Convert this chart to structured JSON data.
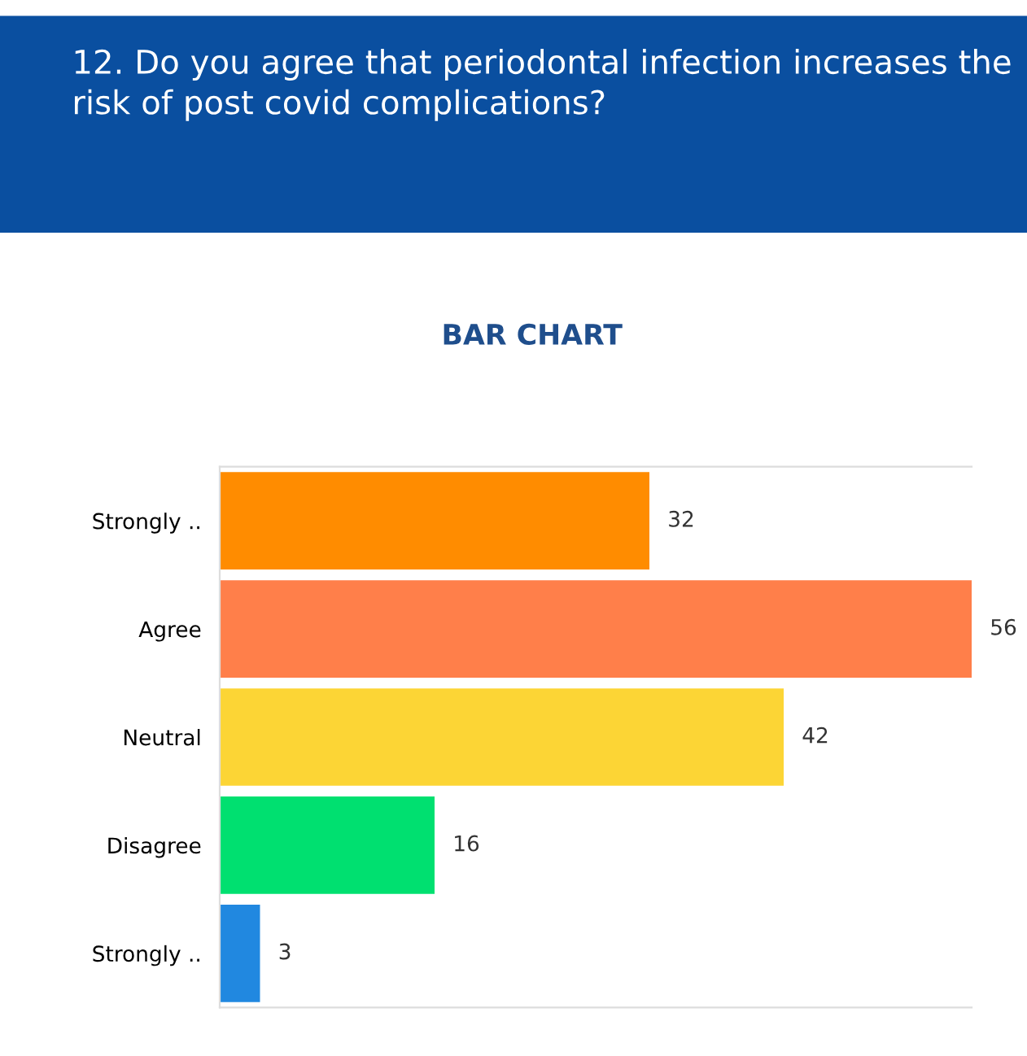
{
  "chart_data": {
    "type": "bar",
    "orientation": "horizontal",
    "title": "12. Do you agree that periodontal infection increases the risk of post covid complications?",
    "subtitle": "BAR CHART",
    "categories": [
      "Strongly ..",
      "Agree",
      "Neutral",
      "Disagree",
      "Strongly .."
    ],
    "values": [
      32,
      56,
      42,
      16,
      3
    ],
    "colors": [
      "#ff8c00",
      "#ff7f4a",
      "#fcd535",
      "#00e070",
      "#2188e0"
    ],
    "xlim": [
      0,
      56
    ],
    "tick_labels": "y",
    "data_labels": true,
    "grid": false,
    "legend": false
  }
}
